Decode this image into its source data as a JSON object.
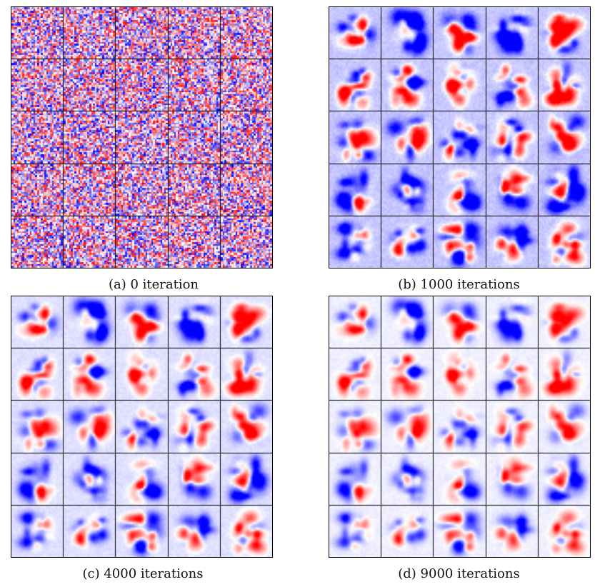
{
  "figure": {
    "panels": [
      {
        "id": "a",
        "caption": "(a) 0 iteration",
        "stage": "random",
        "rows": 5,
        "cols": 5
      },
      {
        "id": "b",
        "caption": "(b) 1000 iterations",
        "stage": "early",
        "rows": 5,
        "cols": 5
      },
      {
        "id": "c",
        "caption": "(c) 4000 iterations",
        "stage": "mid",
        "rows": 5,
        "cols": 5
      },
      {
        "id": "d",
        "caption": "(d) 9000 iterations",
        "stage": "late",
        "rows": 5,
        "cols": 5
      }
    ],
    "colormap": {
      "negative": "#0000ff",
      "zero": "#ffffff",
      "positive": "#ff0000"
    }
  }
}
